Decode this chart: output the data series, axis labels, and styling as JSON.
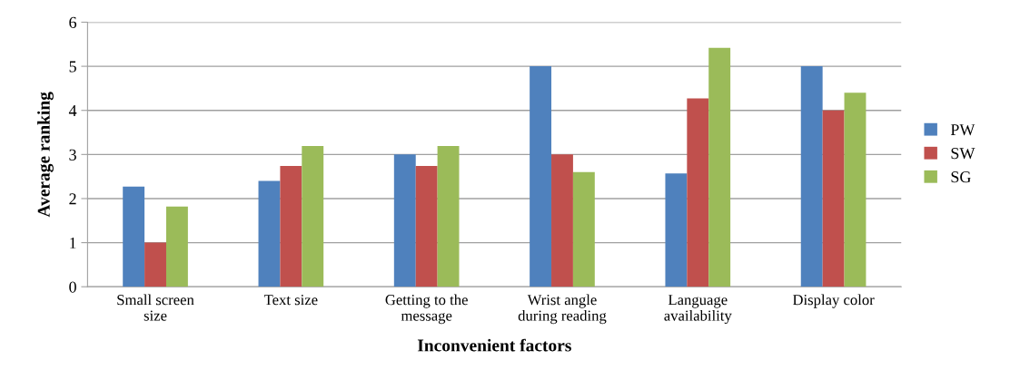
{
  "chart_data": {
    "type": "bar",
    "xlabel": "Inconvenient factors",
    "ylabel": "Average ranking",
    "categories": [
      "Small screen\nsize",
      "Text size",
      "Getting to the\nmessage",
      "Wrist angle\nduring reading",
      "Language\navailability",
      "Display color"
    ],
    "series": [
      {
        "name": "PW",
        "color": "#4f81bd",
        "values": [
          2.27,
          2.4,
          3.0,
          5.0,
          2.57,
          5.0
        ]
      },
      {
        "name": "SW",
        "color": "#c0504d",
        "values": [
          1.0,
          2.74,
          2.74,
          3.0,
          4.27,
          4.0
        ]
      },
      {
        "name": "SG",
        "color": "#9bbb59",
        "values": [
          1.82,
          3.19,
          3.19,
          2.6,
          5.42,
          4.4
        ]
      }
    ],
    "ylim": [
      0,
      6
    ],
    "yticks": [
      0,
      1,
      2,
      3,
      4,
      5,
      6
    ],
    "grid": "y",
    "legend": "right"
  }
}
